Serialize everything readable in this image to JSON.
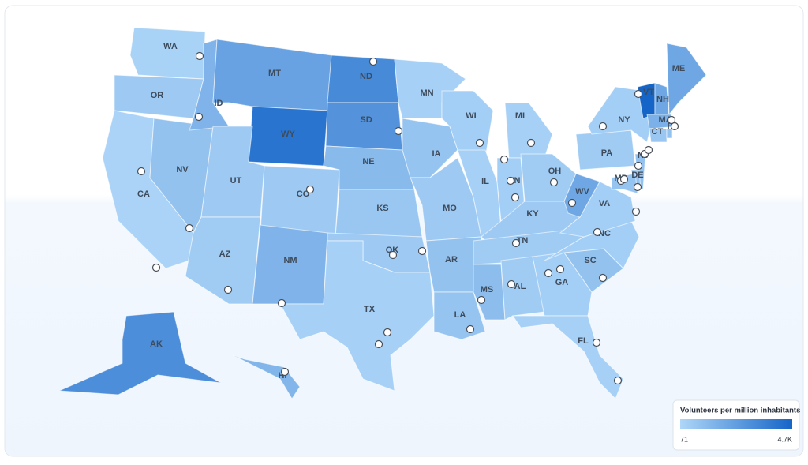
{
  "map": {
    "legend": {
      "title": "Volunteers per million inhabitants",
      "min": 71,
      "max": {
        "value": 4700,
        "label": "4.7K"
      },
      "colors": [
        "#aed6f8",
        "#1565c8"
      ]
    },
    "states": [
      {
        "label": "WA",
        "value": 250
      },
      {
        "label": "OR",
        "value": 600
      },
      {
        "label": "CA",
        "value": 200
      },
      {
        "label": "NV",
        "value": 900
      },
      {
        "label": "ID",
        "value": 1500
      },
      {
        "label": "MT",
        "value": 2200
      },
      {
        "label": "WY",
        "value": 4100
      },
      {
        "label": "UT",
        "value": 600
      },
      {
        "label": "CO",
        "value": 600
      },
      {
        "label": "AZ",
        "value": 500
      },
      {
        "label": "NM",
        "value": 1500
      },
      {
        "label": "ND",
        "value": 3200
      },
      {
        "label": "SD",
        "value": 2800
      },
      {
        "label": "NE",
        "value": 1200
      },
      {
        "label": "KS",
        "value": 700
      },
      {
        "label": "OK",
        "value": 600
      },
      {
        "label": "TX",
        "value": 300
      },
      {
        "label": "MN",
        "value": 300
      },
      {
        "label": "IA",
        "value": 800
      },
      {
        "label": "MO",
        "value": 600
      },
      {
        "label": "AR",
        "value": 900
      },
      {
        "label": "LA",
        "value": 800
      },
      {
        "label": "WI",
        "value": 400
      },
      {
        "label": "IL",
        "value": 300
      },
      {
        "label": "MI",
        "value": 300
      },
      {
        "label": "IN",
        "value": 400
      },
      {
        "label": "OH",
        "value": 500
      },
      {
        "label": "KY",
        "value": 600
      },
      {
        "label": "TN",
        "value": 500
      },
      {
        "label": "MS",
        "value": 1100
      },
      {
        "label": "AL",
        "value": 500
      },
      {
        "label": "GA",
        "value": 400
      },
      {
        "label": "FL",
        "value": 300
      },
      {
        "label": "SC",
        "value": 900
      },
      {
        "label": "NC",
        "value": 400
      },
      {
        "label": "VA",
        "value": 400
      },
      {
        "label": "WV",
        "value": 2000
      },
      {
        "label": "PA",
        "value": 500
      },
      {
        "label": "NY",
        "value": 400
      },
      {
        "label": "VT",
        "value": 4700
      },
      {
        "label": "NH",
        "value": 2000
      },
      {
        "label": "ME",
        "value": 2000
      },
      {
        "label": "MA",
        "value": 1600
      },
      {
        "label": "CT",
        "value": 700
      },
      {
        "label": "RI",
        "value": 900
      },
      {
        "label": "NJ",
        "value": 900
      },
      {
        "label": "DE",
        "value": 900
      },
      {
        "label": "MD",
        "value": 800
      },
      {
        "label": "AK",
        "value": 3000
      },
      {
        "label": "HI",
        "value": 1400
      }
    ]
  }
}
